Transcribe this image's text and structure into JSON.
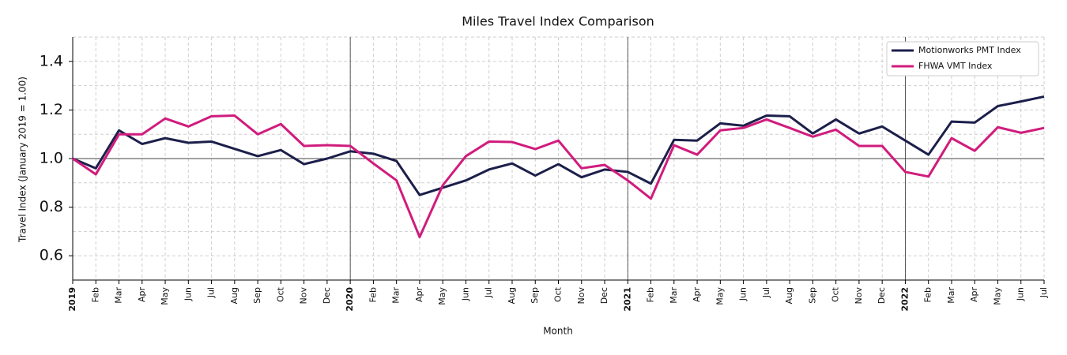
{
  "chart_data": {
    "type": "line",
    "title": "Miles Travel Index Comparison",
    "x_label": "Month",
    "y_label": "Travel Index (January 2019 = 1.00)",
    "categories": [
      "2019",
      "Feb",
      "Mar",
      "Apr",
      "May",
      "Jun",
      "Jul",
      "Aug",
      "Sep",
      "Oct",
      "Nov",
      "Dec",
      "2020",
      "Feb",
      "Mar",
      "Apr",
      "May",
      "Jun",
      "Jul",
      "Aug",
      "Sep",
      "Oct",
      "Nov",
      "Dec",
      "2021",
      "Feb",
      "Mar",
      "Apr",
      "May",
      "Jun",
      "Jul",
      "Aug",
      "Sep",
      "Oct",
      "Nov",
      "Dec",
      "2022",
      "Feb",
      "Mar",
      "Apr",
      "May",
      "Jun",
      "Jul"
    ],
    "series": [
      {
        "name": "Motionworks PMT Index",
        "color": "#1c1f4a",
        "values": [
          1.0,
          0.96,
          1.116,
          1.06,
          1.084,
          1.065,
          1.07,
          1.04,
          1.01,
          1.035,
          0.977,
          1.0,
          1.03,
          1.02,
          0.99,
          0.85,
          0.88,
          0.91,
          0.955,
          0.98,
          0.93,
          0.977,
          0.923,
          0.955,
          0.945,
          0.897,
          1.077,
          1.074,
          1.145,
          1.135,
          1.177,
          1.174,
          1.103,
          1.161,
          1.103,
          1.132,
          1.074,
          1.016,
          1.152,
          1.148,
          1.216,
          1.235,
          1.255
        ]
      },
      {
        "name": "FHWA VMT Index",
        "color": "#d01c7d",
        "values": [
          1.0,
          0.935,
          1.1,
          1.1,
          1.165,
          1.132,
          1.174,
          1.177,
          1.1,
          1.142,
          1.052,
          1.055,
          1.052,
          0.98,
          0.91,
          0.677,
          0.89,
          1.01,
          1.07,
          1.068,
          1.039,
          1.074,
          0.96,
          0.974,
          0.91,
          0.835,
          1.055,
          1.016,
          1.116,
          1.126,
          1.161,
          1.126,
          1.09,
          1.119,
          1.052,
          1.052,
          0.945,
          0.926,
          1.084,
          1.032,
          1.129,
          1.106,
          1.126
        ]
      }
    ],
    "ylim": [
      0.5,
      1.5
    ],
    "yticks": [
      0.6,
      0.8,
      {
        "value": 1,
        "label": "1.0"
      },
      1.2,
      1.4
    ],
    "minor_yticks": [
      0.5,
      0.7,
      0.9,
      1.1,
      1.3,
      1.5
    ],
    "reference_line": 1,
    "grid": true,
    "legend": "upper right"
  }
}
